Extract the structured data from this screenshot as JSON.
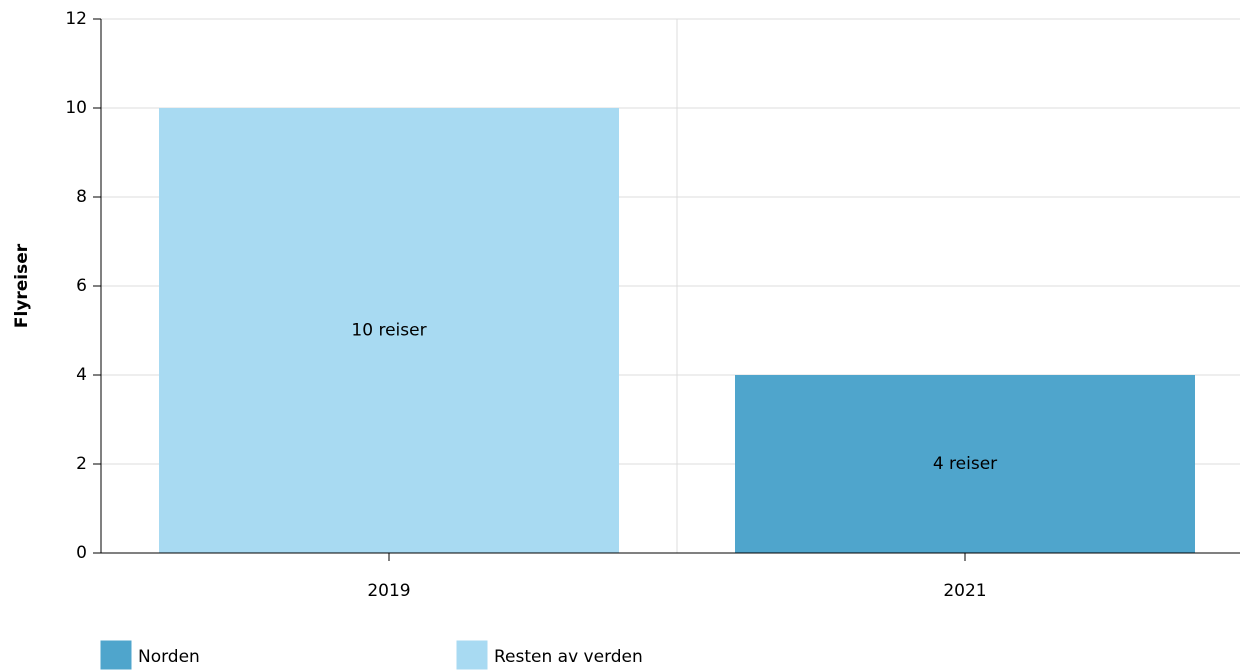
{
  "chart_data": {
    "type": "stacked_bar",
    "y_label": "Flyreiser",
    "categories": [
      "2019",
      "2021"
    ],
    "series": [
      {
        "name": "Norden",
        "color": "#4fa5cc",
        "values": [
          0,
          4
        ],
        "value_labels": [
          null,
          "4 reiser"
        ]
      },
      {
        "name": "Resten av verden",
        "color": "#a8daf2",
        "values": [
          10,
          0
        ],
        "value_labels": [
          "10 reiser",
          null
        ]
      }
    ],
    "ylim": [
      0,
      12
    ],
    "yticks": [
      0,
      2,
      4,
      6,
      8,
      10,
      12
    ],
    "grid": true,
    "legend": "bottom"
  }
}
